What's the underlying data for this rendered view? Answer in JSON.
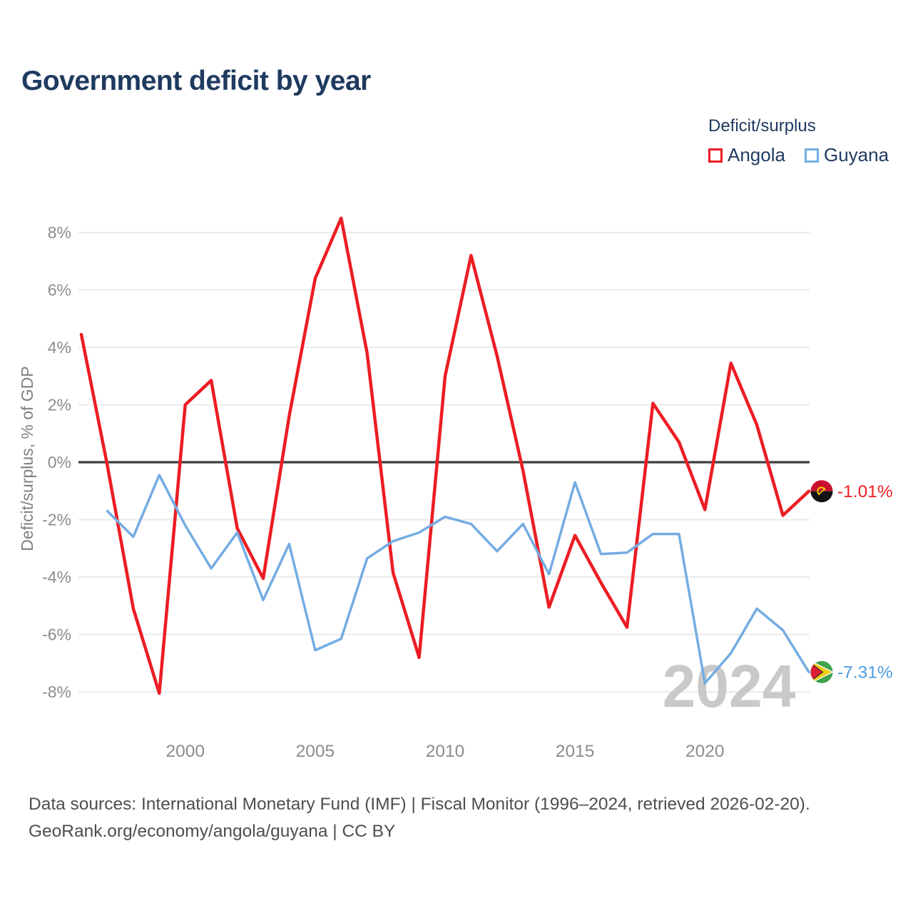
{
  "title": "Government deficit by year",
  "legend": {
    "title": "Deficit/surplus",
    "items": [
      {
        "label": "Angola",
        "color": "#ec1d24"
      },
      {
        "label": "Guyana",
        "color": "#74ace2"
      }
    ]
  },
  "watermark": "2024",
  "y_axis": {
    "title": "Deficit/surplus, % of GDP",
    "ticks": [
      {
        "label": "8%",
        "value": 8
      },
      {
        "label": "6%",
        "value": 6
      },
      {
        "label": "4%",
        "value": 4
      },
      {
        "label": "2%",
        "value": 2
      },
      {
        "label": "0%",
        "value": 0
      },
      {
        "label": "-2%",
        "value": -2
      },
      {
        "label": "-4%",
        "value": -4
      },
      {
        "label": "-6%",
        "value": -6
      },
      {
        "label": "-8%",
        "value": -8
      }
    ]
  },
  "x_axis": {
    "ticks": [
      {
        "label": "2000",
        "value": 2000
      },
      {
        "label": "2005",
        "value": 2005
      },
      {
        "label": "2010",
        "value": 2010
      },
      {
        "label": "2015",
        "value": 2015
      },
      {
        "label": "2020",
        "value": 2020
      }
    ]
  },
  "end_labels": [
    {
      "series": "Angola",
      "label": "-1.01%",
      "color": "#ec1d24"
    },
    {
      "series": "Guyana",
      "label": "-7.31%",
      "color": "#4c9ce0"
    }
  ],
  "footer": {
    "line1": "Data sources: International Monetary Fund (IMF) | Fiscal Monitor (1996–2024, retrieved 2026-02-20).",
    "line2": "GeoRank.org/economy/angola/guyana | CC BY"
  },
  "chart_data": {
    "type": "line",
    "title": "Government deficit by year",
    "xlabel": "",
    "ylabel": "Deficit/surplus, % of GDP",
    "ylim": [
      -9.6,
      9.4
    ],
    "xlim": [
      1996,
      2024
    ],
    "grid": "horizontal",
    "legend_position": "top-right",
    "series": [
      {
        "name": "Angola",
        "color": "#ec1d24",
        "x": [
          1996,
          1997,
          1998,
          1999,
          2000,
          2001,
          2002,
          2003,
          2004,
          2005,
          2006,
          2007,
          2008,
          2009,
          2010,
          2011,
          2012,
          2013,
          2014,
          2015,
          2016,
          2017,
          2018,
          2019,
          2020,
          2021,
          2022,
          2023,
          2024
        ],
        "values": [
          4.45,
          -0.1,
          -5.1,
          -8.05,
          2.0,
          2.85,
          -2.3,
          -4.05,
          1.6,
          6.4,
          8.5,
          3.8,
          -3.85,
          -6.8,
          3.0,
          7.2,
          3.7,
          -0.3,
          -5.05,
          -2.55,
          -4.2,
          -5.75,
          2.05,
          0.7,
          -1.65,
          3.45,
          1.3,
          -1.85,
          -1.01
        ]
      },
      {
        "name": "Guyana",
        "color": "#74ace2",
        "x": [
          1997,
          1998,
          1999,
          2000,
          2001,
          2002,
          2003,
          2004,
          2005,
          2006,
          2007,
          2008,
          2009,
          2010,
          2011,
          2012,
          2013,
          2014,
          2015,
          2016,
          2017,
          2018,
          2019,
          2020,
          2021,
          2022,
          2023,
          2024
        ],
        "values": [
          -1.7,
          -2.6,
          -0.45,
          -2.2,
          -3.7,
          -2.45,
          -4.8,
          -2.85,
          -6.55,
          -6.15,
          -3.35,
          -2.75,
          -2.45,
          -1.9,
          -2.15,
          -3.1,
          -2.15,
          -3.9,
          -0.7,
          -3.2,
          -3.15,
          -2.5,
          -2.5,
          -7.7,
          -6.65,
          -5.1,
          -5.85,
          -7.31
        ]
      }
    ]
  }
}
